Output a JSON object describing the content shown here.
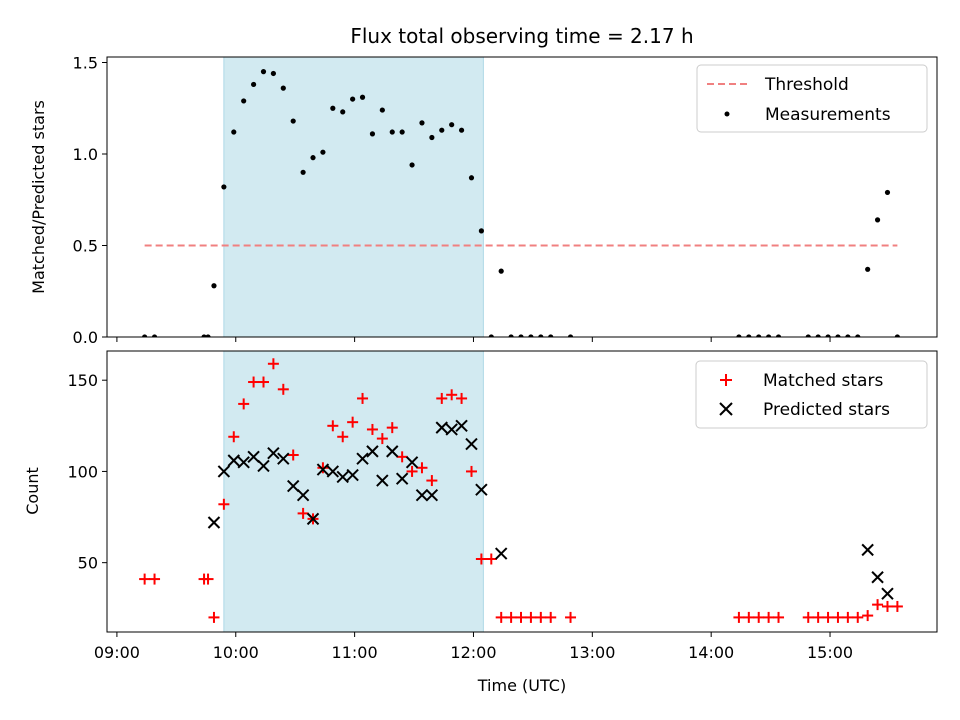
{
  "chart_data": {
    "type": "scatter",
    "title": "Flux total observing time = 2.17 h",
    "xlabel": "Time (UTC)",
    "x_ticks": [
      "09:00",
      "10:00",
      "11:00",
      "12:00",
      "13:00",
      "14:00",
      "15:00"
    ],
    "x_range": [
      "08:55",
      "15:54"
    ],
    "shaded_interval": [
      "09:54",
      "12:05"
    ],
    "shade_color": "#add8e6",
    "top_panel": {
      "ylabel": "Matched/Predicted stars",
      "ylim": [
        0,
        1.53
      ],
      "y_ticks": [
        "0.0",
        "0.5",
        "1.0",
        "1.5"
      ],
      "threshold": {
        "name": "Threshold",
        "value": 0.5,
        "x_start": "09:14",
        "x_end": "15:34",
        "color": "#f08080"
      },
      "series": [
        {
          "name": "Measurements",
          "color": "#000000",
          "points": [
            [
              "09:14",
              0.0
            ],
            [
              "09:19",
              0.0
            ],
            [
              "09:44",
              0.0
            ],
            [
              "09:46",
              0.0
            ],
            [
              "09:49",
              0.28
            ],
            [
              "09:54",
              0.82
            ],
            [
              "09:59",
              1.12
            ],
            [
              "10:04",
              1.29
            ],
            [
              "10:09",
              1.38
            ],
            [
              "10:14",
              1.45
            ],
            [
              "10:19",
              1.44
            ],
            [
              "10:24",
              1.36
            ],
            [
              "10:29",
              1.18
            ],
            [
              "10:34",
              0.9
            ],
            [
              "10:39",
              0.98
            ],
            [
              "10:44",
              1.01
            ],
            [
              "10:49",
              1.25
            ],
            [
              "10:54",
              1.23
            ],
            [
              "10:59",
              1.3
            ],
            [
              "11:04",
              1.31
            ],
            [
              "11:09",
              1.11
            ],
            [
              "11:14",
              1.24
            ],
            [
              "11:19",
              1.12
            ],
            [
              "11:24",
              1.12
            ],
            [
              "11:29",
              0.94
            ],
            [
              "11:34",
              1.17
            ],
            [
              "11:39",
              1.09
            ],
            [
              "11:44",
              1.13
            ],
            [
              "11:49",
              1.16
            ],
            [
              "11:54",
              1.13
            ],
            [
              "11:59",
              0.87
            ],
            [
              "12:04",
              0.58
            ],
            [
              "12:09",
              0.0
            ],
            [
              "12:14",
              0.36
            ],
            [
              "12:19",
              0.0
            ],
            [
              "12:24",
              0.0
            ],
            [
              "12:29",
              0.0
            ],
            [
              "12:34",
              0.0
            ],
            [
              "12:39",
              0.0
            ],
            [
              "12:49",
              0.0
            ],
            [
              "14:14",
              0.0
            ],
            [
              "14:19",
              0.0
            ],
            [
              "14:24",
              0.0
            ],
            [
              "14:29",
              0.0
            ],
            [
              "14:34",
              0.0
            ],
            [
              "14:49",
              0.0
            ],
            [
              "14:54",
              0.0
            ],
            [
              "14:59",
              0.0
            ],
            [
              "15:04",
              0.0
            ],
            [
              "15:09",
              0.0
            ],
            [
              "15:14",
              0.0
            ],
            [
              "15:19",
              0.37
            ],
            [
              "15:24",
              0.64
            ],
            [
              "15:29",
              0.79
            ],
            [
              "15:34",
              0.0
            ]
          ]
        }
      ],
      "legend_position": "upper right"
    },
    "bottom_panel": {
      "ylabel": "Count",
      "ylim": [
        12,
        166
      ],
      "y_ticks": [
        "50",
        "100",
        "150"
      ],
      "series": [
        {
          "name": "Matched stars",
          "marker": "+",
          "color": "#ff0000",
          "points": [
            [
              "09:14",
              41
            ],
            [
              "09:19",
              41
            ],
            [
              "09:44",
              41
            ],
            [
              "09:46",
              41
            ],
            [
              "09:49",
              20
            ],
            [
              "09:54",
              82
            ],
            [
              "09:59",
              119
            ],
            [
              "10:04",
              137
            ],
            [
              "10:09",
              149
            ],
            [
              "10:14",
              149
            ],
            [
              "10:19",
              159
            ],
            [
              "10:24",
              145
            ],
            [
              "10:29",
              109
            ],
            [
              "10:34",
              77
            ],
            [
              "10:39",
              74
            ],
            [
              "10:44",
              102
            ],
            [
              "10:49",
              125
            ],
            [
              "10:54",
              119
            ],
            [
              "10:59",
              127
            ],
            [
              "11:04",
              140
            ],
            [
              "11:09",
              123
            ],
            [
              "11:14",
              118
            ],
            [
              "11:19",
              124
            ],
            [
              "11:24",
              108
            ],
            [
              "11:29",
              100
            ],
            [
              "11:34",
              102
            ],
            [
              "11:39",
              95
            ],
            [
              "11:44",
              140
            ],
            [
              "11:49",
              142
            ],
            [
              "11:54",
              140
            ],
            [
              "11:59",
              100
            ],
            [
              "12:04",
              52
            ],
            [
              "12:09",
              52
            ],
            [
              "12:14",
              20
            ],
            [
              "12:19",
              20
            ],
            [
              "12:24",
              20
            ],
            [
              "12:29",
              20
            ],
            [
              "12:34",
              20
            ],
            [
              "12:39",
              20
            ],
            [
              "12:49",
              20
            ],
            [
              "14:14",
              20
            ],
            [
              "14:19",
              20
            ],
            [
              "14:24",
              20
            ],
            [
              "14:29",
              20
            ],
            [
              "14:34",
              20
            ],
            [
              "14:49",
              20
            ],
            [
              "14:54",
              20
            ],
            [
              "14:59",
              20
            ],
            [
              "15:04",
              20
            ],
            [
              "15:09",
              20
            ],
            [
              "15:14",
              20
            ],
            [
              "15:19",
              21
            ],
            [
              "15:24",
              27
            ],
            [
              "15:29",
              26
            ],
            [
              "15:34",
              26
            ]
          ]
        },
        {
          "name": "Predicted stars",
          "marker": "x",
          "color": "#000000",
          "points": [
            [
              "09:49",
              72
            ],
            [
              "09:54",
              100
            ],
            [
              "09:59",
              106
            ],
            [
              "10:04",
              105
            ],
            [
              "10:09",
              108
            ],
            [
              "10:14",
              103
            ],
            [
              "10:19",
              110
            ],
            [
              "10:24",
              107
            ],
            [
              "10:29",
              92
            ],
            [
              "10:34",
              87
            ],
            [
              "10:39",
              74
            ],
            [
              "10:44",
              101
            ],
            [
              "10:49",
              100
            ],
            [
              "10:54",
              97
            ],
            [
              "10:59",
              98
            ],
            [
              "11:04",
              107
            ],
            [
              "11:09",
              111
            ],
            [
              "11:14",
              95
            ],
            [
              "11:19",
              111
            ],
            [
              "11:24",
              96
            ],
            [
              "11:29",
              105
            ],
            [
              "11:34",
              87
            ],
            [
              "11:39",
              87
            ],
            [
              "11:44",
              124
            ],
            [
              "11:49",
              123
            ],
            [
              "11:54",
              125
            ],
            [
              "11:59",
              115
            ],
            [
              "12:04",
              90
            ],
            [
              "12:14",
              55
            ],
            [
              "15:19",
              57
            ],
            [
              "15:24",
              42
            ],
            [
              "15:29",
              33
            ]
          ]
        }
      ],
      "legend_position": "upper right"
    }
  }
}
